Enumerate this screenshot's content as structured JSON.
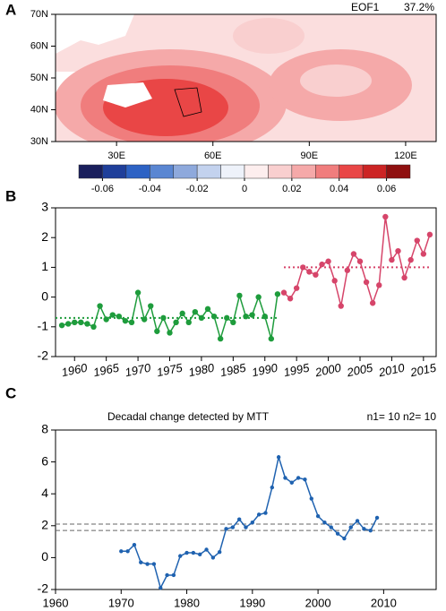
{
  "chart_data": [
    {
      "type": "map",
      "panel": "A",
      "title": "EOF1",
      "subtitle": "37.2%",
      "xlim": [
        11,
        129.5
      ],
      "ylim": [
        30,
        70
      ],
      "xticks": [
        {
          "value": 30,
          "label": "30E"
        },
        {
          "value": 60,
          "label": "60E"
        },
        {
          "value": 90,
          "label": "90E"
        },
        {
          "value": 120,
          "label": "120E"
        }
      ],
      "yticks": [
        {
          "value": 30,
          "label": "30N"
        },
        {
          "value": 40,
          "label": "40N"
        },
        {
          "value": 50,
          "label": "50N"
        },
        {
          "value": 60,
          "label": "60N"
        },
        {
          "value": 70,
          "label": "70N"
        }
      ],
      "colorbar": {
        "clim": [
          -0.07,
          0.07
        ],
        "colors": [
          "#1a1f5c",
          "#1f3f9a",
          "#2d62c4",
          "#5a86d2",
          "#8ea9dc",
          "#c3d2ee",
          "#eef2fa",
          "#fdeeee",
          "#f9cfcf",
          "#f5a9a9",
          "#f07d7d",
          "#e94646",
          "#cc2424",
          "#8f1010"
        ],
        "ticks": [
          -0.06,
          -0.04,
          -0.02,
          0,
          0.02,
          0.04,
          0.06
        ]
      }
    },
    {
      "type": "line",
      "panel": "B",
      "xlim": [
        1957,
        2017
      ],
      "ylim": [
        -2,
        3
      ],
      "xticks": [
        1960,
        1965,
        1970,
        1975,
        1980,
        1985,
        1990,
        1995,
        2000,
        2005,
        2010,
        2015
      ],
      "yticks": [
        -2,
        -1,
        0,
        1,
        2,
        3
      ],
      "series": [
        {
          "color": "#1e9c3c",
          "x": [
            1958,
            1959,
            1960,
            1961,
            1962,
            1963,
            1964,
            1965,
            1966,
            1967,
            1968,
            1969,
            1970,
            1971,
            1972,
            1973,
            1974,
            1975,
            1976,
            1977,
            1978,
            1979,
            1980,
            1981,
            1982,
            1983,
            1984,
            1985,
            1986,
            1987,
            1988,
            1989,
            1990,
            1991,
            1992
          ],
          "values": [
            -0.95,
            -0.9,
            -0.85,
            -0.85,
            -0.9,
            -1.0,
            -0.3,
            -0.75,
            -0.6,
            -0.65,
            -0.8,
            -0.85,
            0.15,
            -0.75,
            -0.3,
            -1.15,
            -0.7,
            -1.2,
            -0.85,
            -0.55,
            -0.85,
            -0.5,
            -0.7,
            -0.4,
            -0.65,
            -1.4,
            -0.7,
            -0.85,
            0.05,
            -0.65,
            -0.6,
            0.0,
            -0.65,
            -1.4,
            0.1
          ]
        },
        {
          "color": "#d6456a",
          "x": [
            1993,
            1994,
            1995,
            1996,
            1997,
            1998,
            1999,
            2000,
            2001,
            2002,
            2003,
            2004,
            2005,
            2006,
            2007,
            2008,
            2009,
            2010,
            2011,
            2012,
            2013,
            2014,
            2015,
            2016
          ],
          "values": [
            0.15,
            -0.05,
            0.3,
            1.0,
            0.85,
            0.75,
            1.1,
            1.2,
            0.55,
            -0.3,
            0.9,
            1.45,
            1.2,
            0.5,
            -0.2,
            0.4,
            2.7,
            1.25,
            1.55,
            0.65,
            1.25,
            1.9,
            1.45,
            2.1
          ]
        }
      ],
      "reference_lines": [
        {
          "y": -0.7,
          "x": [
            1957,
            1992
          ],
          "color": "#1e9c3c",
          "style": "dotted"
        },
        {
          "y": 1.0,
          "x": [
            1993,
            2016
          ],
          "color": "#d6456a",
          "style": "dotted"
        }
      ]
    },
    {
      "type": "line",
      "panel": "C",
      "title": "Decadal change detected by MTT",
      "subtitle": "n1= 10 n2= 10",
      "xlim": [
        1960,
        2018
      ],
      "ylim": [
        -2,
        8
      ],
      "xticks": [
        1960,
        1970,
        1980,
        1990,
        2000,
        2010
      ],
      "yticks": [
        -2,
        0,
        2,
        4,
        6,
        8
      ],
      "series": [
        {
          "color": "#1f62b0",
          "x": [
            1970,
            1971,
            1972,
            1973,
            1974,
            1975,
            1976,
            1977,
            1978,
            1979,
            1980,
            1981,
            1982,
            1983,
            1984,
            1985,
            1986,
            1987,
            1988,
            1989,
            1990,
            1991,
            1992,
            1993,
            1994,
            1995,
            1996,
            1997,
            1998,
            1999,
            2000,
            2001,
            2002,
            2003,
            2004,
            2005,
            2006,
            2007,
            2008,
            2009
          ],
          "values": [
            0.4,
            0.4,
            0.8,
            -0.3,
            -0.4,
            -0.4,
            -1.9,
            -1.1,
            -1.1,
            0.1,
            0.3,
            0.3,
            0.2,
            0.5,
            0.0,
            0.35,
            1.8,
            1.9,
            2.4,
            1.9,
            2.2,
            2.7,
            2.8,
            4.4,
            6.3,
            5.0,
            4.7,
            5.0,
            4.9,
            3.7,
            2.6,
            2.2,
            1.9,
            1.5,
            1.2,
            1.9,
            2.3,
            1.8,
            1.7,
            2.5
          ]
        }
      ],
      "reference_lines": [
        {
          "y": 2.1,
          "x": [
            1960,
            2018
          ],
          "color": "#666666",
          "style": "dashed"
        },
        {
          "y": 1.7,
          "x": [
            1960,
            2018
          ],
          "color": "#666666",
          "style": "dashed"
        }
      ]
    }
  ]
}
